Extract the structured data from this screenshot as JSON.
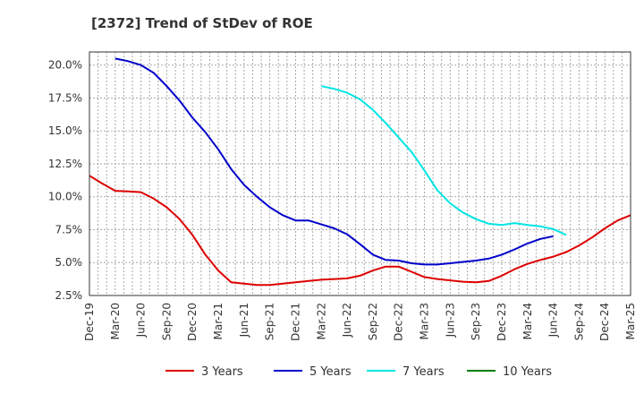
{
  "chart_data": {
    "type": "line",
    "title": "[2372]  Trend of StDev of ROE",
    "xlabel": "",
    "ylabel": "",
    "x_ticks": [
      "Dec-19",
      "Mar-20",
      "Jun-20",
      "Sep-20",
      "Dec-20",
      "Mar-21",
      "Jun-21",
      "Sep-21",
      "Dec-21",
      "Mar-22",
      "Jun-22",
      "Sep-22",
      "Dec-22",
      "Mar-23",
      "Jun-23",
      "Sep-23",
      "Dec-23",
      "Mar-24",
      "Jun-24",
      "Sep-24",
      "Dec-24",
      "Mar-25"
    ],
    "y_ticks": [
      "2.5%",
      "5.0%",
      "7.5%",
      "10.0%",
      "12.5%",
      "15.0%",
      "17.5%",
      "20.0%"
    ],
    "y_tick_values": [
      2.5,
      5.0,
      7.5,
      10.0,
      12.5,
      15.0,
      17.5,
      20.0
    ],
    "ylim": [
      2.5,
      21.0
    ],
    "grid": true,
    "legend_position": "bottom",
    "series": [
      {
        "name": "3 Years",
        "color": "#dd0000",
        "start_index": 0,
        "values": [
          11.6,
          11.0,
          10.45,
          10.4,
          10.35,
          9.85,
          9.2,
          8.3,
          7.1,
          5.6,
          4.4,
          3.5,
          3.4,
          3.3,
          3.3,
          3.4,
          3.5,
          3.6,
          3.7,
          3.75,
          3.8,
          4.0,
          4.4,
          4.7,
          4.7,
          4.3,
          3.9,
          3.75,
          3.65,
          3.55,
          3.5,
          3.6,
          4.0,
          4.5,
          4.9,
          5.2,
          5.45,
          5.8,
          6.3,
          6.9,
          7.6,
          8.2,
          8.6
        ]
      },
      {
        "name": "5 Years",
        "color": "#0000cc",
        "start_index": 2,
        "values": [
          20.5,
          20.3,
          20.0,
          19.4,
          18.4,
          17.3,
          16.0,
          14.9,
          13.6,
          12.1,
          10.9,
          10.0,
          9.2,
          8.6,
          8.2,
          8.2,
          7.9,
          7.6,
          7.15,
          6.4,
          5.6,
          5.2,
          5.15,
          4.95,
          4.85,
          4.85,
          4.95,
          5.05,
          5.15,
          5.3,
          5.6,
          6.0,
          6.45,
          6.8,
          7.0
        ]
      },
      {
        "name": "7 Years",
        "color": "#00e5e5",
        "start_index": 18,
        "values": [
          18.4,
          18.2,
          17.9,
          17.4,
          16.6,
          15.6,
          14.5,
          13.4,
          12.0,
          10.5,
          9.5,
          8.8,
          8.3,
          7.95,
          7.85,
          8.0,
          7.85,
          7.75,
          7.55,
          7.1
        ]
      },
      {
        "name": "10 Years",
        "color": "#007f00",
        "start_index": 0,
        "values": []
      }
    ]
  }
}
